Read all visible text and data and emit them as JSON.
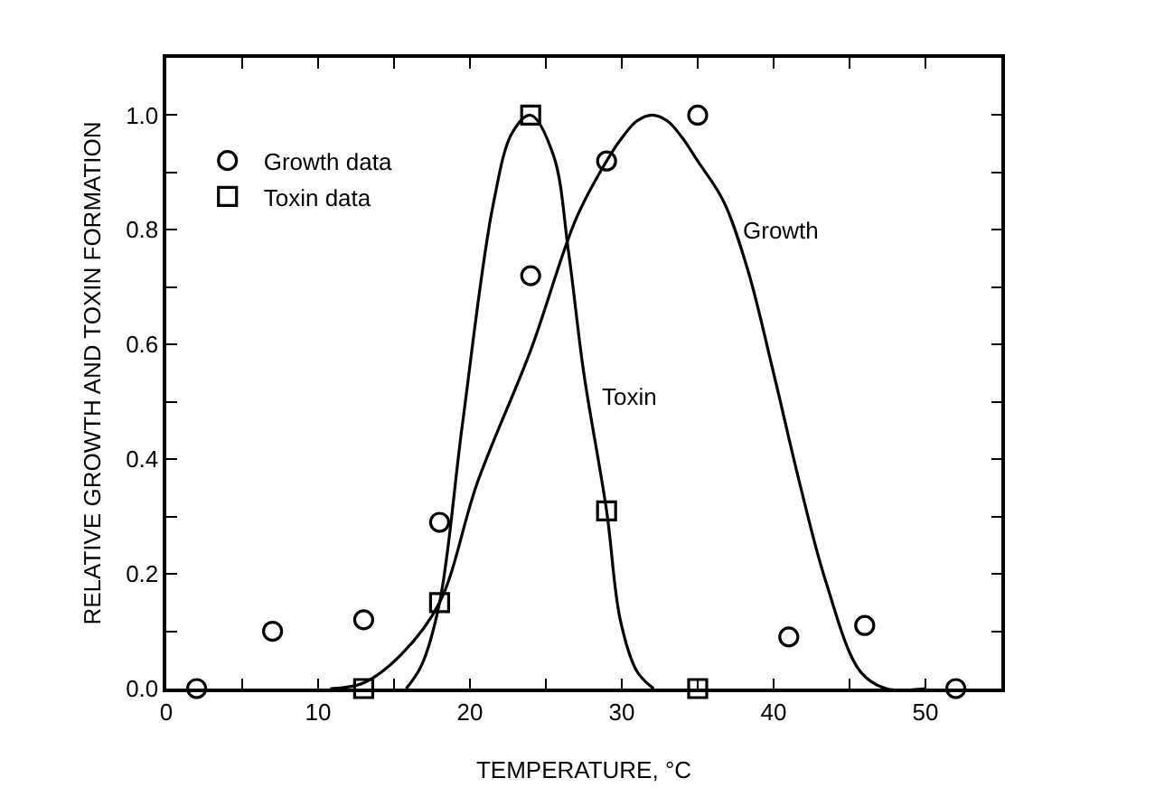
{
  "chart_data": {
    "type": "scatter",
    "xlabel": "TEMPERATURE, °C",
    "ylabel": "RELATIVE GROWTH AND TOXIN FORMATION",
    "xlim": [
      0,
      55
    ],
    "ylim": [
      0,
      1.1
    ],
    "xticks": [
      0,
      {
        "value": 5,
        "label": null
      },
      10,
      {
        "value": 15,
        "label": null
      },
      20,
      {
        "value": 25,
        "label": null
      },
      30,
      {
        "value": 35,
        "label": null
      },
      40,
      {
        "value": 45,
        "label": null
      },
      50
    ],
    "yticks": [
      {
        "value": 0,
        "label": "0.0"
      },
      {
        "value": 0.1,
        "label": null
      },
      {
        "value": 0.2,
        "label": "0.2"
      },
      {
        "value": 0.3,
        "label": null
      },
      {
        "value": 0.4,
        "label": "0.4"
      },
      {
        "value": 0.5,
        "label": null
      },
      {
        "value": 0.6,
        "label": "0.6"
      },
      {
        "value": 0.7,
        "label": null
      },
      {
        "value": 0.8,
        "label": "0.8"
      },
      {
        "value": 0.9,
        "label": null
      },
      {
        "value": 1,
        "label": "1.0"
      }
    ],
    "grid": false,
    "legend": "top left",
    "series": [
      {
        "name": "Growth data",
        "marker": "circle",
        "color": "#000000",
        "x": [
          2,
          7,
          13,
          18,
          24,
          29,
          35,
          41,
          46,
          52
        ],
        "values": [
          0,
          0.1,
          0.12,
          0.29,
          0.72,
          0.92,
          1.0,
          0.09,
          0.11,
          0
        ]
      },
      {
        "name": "Toxin data",
        "marker": "square",
        "color": "#000000",
        "x": [
          13,
          18,
          24,
          29,
          35
        ],
        "values": [
          0,
          0.15,
          1.0,
          0.31,
          0
        ]
      },
      {
        "type": "line",
        "marker": "none",
        "line_style": "solid",
        "color": "#000000",
        "x": [
          10.8,
          13,
          15.5,
          18,
          20.5,
          24,
          27,
          29,
          30,
          31,
          32,
          33,
          34,
          35,
          36.7,
          38.3,
          40,
          41.7,
          43.4,
          45.7,
          47.4,
          50
        ],
        "values": [
          0,
          0.01,
          0.06,
          0.15,
          0.36,
          0.59,
          0.82,
          0.92,
          0.96,
          0.99,
          1.0,
          0.99,
          0.96,
          0.92,
          0.85,
          0.73,
          0.55,
          0.36,
          0.19,
          0.03,
          0,
          0
        ]
      },
      {
        "type": "line",
        "marker": "none",
        "line_style": "solid",
        "color": "#000000",
        "x": [
          15.8,
          16.8,
          18,
          19.5,
          21.5,
          22.8,
          24,
          25.5,
          26.5,
          27.5,
          29,
          29.9,
          31,
          32.1
        ],
        "values": [
          0,
          0.04,
          0.15,
          0.46,
          0.84,
          0.97,
          1.0,
          0.93,
          0.76,
          0.55,
          0.31,
          0.12,
          0.03,
          0
        ]
      }
    ],
    "annotations": [
      {
        "text": "Growth",
        "x": 37,
        "y": 0.8
      },
      {
        "text": "Toxin",
        "x": 27.7,
        "y": 0.51
      }
    ]
  }
}
